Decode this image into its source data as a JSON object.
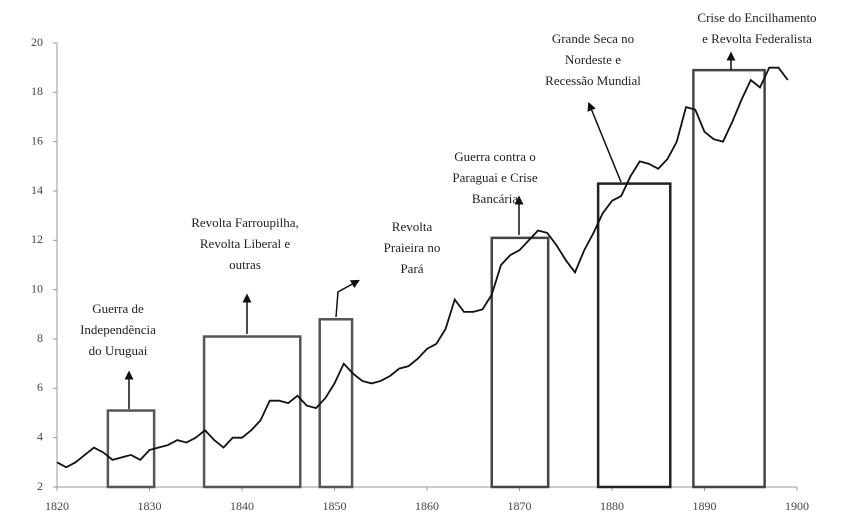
{
  "chart_data": {
    "type": "line",
    "x": [
      1820,
      1821,
      1822,
      1823,
      1824,
      1825,
      1826,
      1827,
      1828,
      1829,
      1830,
      1831,
      1832,
      1833,
      1834,
      1835,
      1836,
      1837,
      1838,
      1839,
      1840,
      1841,
      1842,
      1843,
      1844,
      1845,
      1846,
      1847,
      1848,
      1849,
      1850,
      1851,
      1852,
      1853,
      1854,
      1855,
      1856,
      1857,
      1858,
      1859,
      1860,
      1861,
      1862,
      1863,
      1864,
      1865,
      1866,
      1867,
      1868,
      1869,
      1870,
      1871,
      1872,
      1873,
      1874,
      1875,
      1876,
      1877,
      1878,
      1879,
      1880,
      1881,
      1882,
      1883,
      1884,
      1885,
      1886,
      1887,
      1888,
      1889,
      1890,
      1891,
      1892,
      1893,
      1894,
      1895,
      1896,
      1897,
      1898,
      1899
    ],
    "series": [
      {
        "color": "#111111",
        "values": [
          3.0,
          2.8,
          3.0,
          3.3,
          3.6,
          3.4,
          3.1,
          3.2,
          3.3,
          3.1,
          3.5,
          3.6,
          3.7,
          3.9,
          3.8,
          4.0,
          4.3,
          3.9,
          3.6,
          4.0,
          4.0,
          4.3,
          4.7,
          5.5,
          5.5,
          5.4,
          5.7,
          5.3,
          5.2,
          5.6,
          6.2,
          7.0,
          6.6,
          6.3,
          6.2,
          6.3,
          6.5,
          6.8,
          6.9,
          7.2,
          7.6,
          7.8,
          8.4,
          9.6,
          9.1,
          9.1,
          9.2,
          9.8,
          11.0,
          11.4,
          11.6,
          12.0,
          12.4,
          12.3,
          11.8,
          11.2,
          10.7,
          11.6,
          12.3,
          13.1,
          13.6,
          13.8,
          14.6,
          15.2,
          15.1,
          14.9,
          15.3,
          16.0,
          17.4,
          17.3,
          16.4,
          16.1,
          16.0,
          16.8,
          17.7,
          18.5,
          18.2,
          19.0,
          19.0,
          18.5
        ]
      }
    ],
    "periods": [
      {
        "start": 1825.5,
        "end": 1830.5,
        "value": 5.1,
        "color": "#555555",
        "label": [
          "Guerra de",
          "Independência",
          "do Uruguai"
        ]
      },
      {
        "start": 1835.9,
        "end": 1846.3,
        "value": 8.1,
        "color": "#555555",
        "label": [
          "Revolta Farroupilha,",
          "Revolta Liberal e",
          "outras"
        ]
      },
      {
        "start": 1848.4,
        "end": 1851.9,
        "value": 8.8,
        "color": "#555555",
        "label": [
          "Revolta",
          "Praieira no",
          "Pará"
        ]
      },
      {
        "start": 1867.0,
        "end": 1873.1,
        "value": 12.1,
        "color": "#444444",
        "label": [
          "Guerra contra o",
          "Paraguai e Crise",
          "Bancária"
        ]
      },
      {
        "start": 1878.5,
        "end": 1886.3,
        "value": 14.3,
        "color": "#222222",
        "label": [
          "Grande Seca no",
          "Nordeste e",
          "Recessão Mundial"
        ]
      },
      {
        "start": 1888.8,
        "end": 1896.5,
        "value": 18.9,
        "color": "#444444",
        "label": [
          "Crise do Encilhamento",
          "e Revolta Federalista"
        ]
      }
    ],
    "xlim": [
      1820,
      1900
    ],
    "xticks": [
      1820,
      1830,
      1840,
      1850,
      1860,
      1870,
      1880,
      1890,
      1900
    ],
    "ylim": [
      2,
      20
    ],
    "yticks": [
      2,
      4,
      6,
      8,
      10,
      12,
      14,
      16,
      18,
      20
    ]
  }
}
